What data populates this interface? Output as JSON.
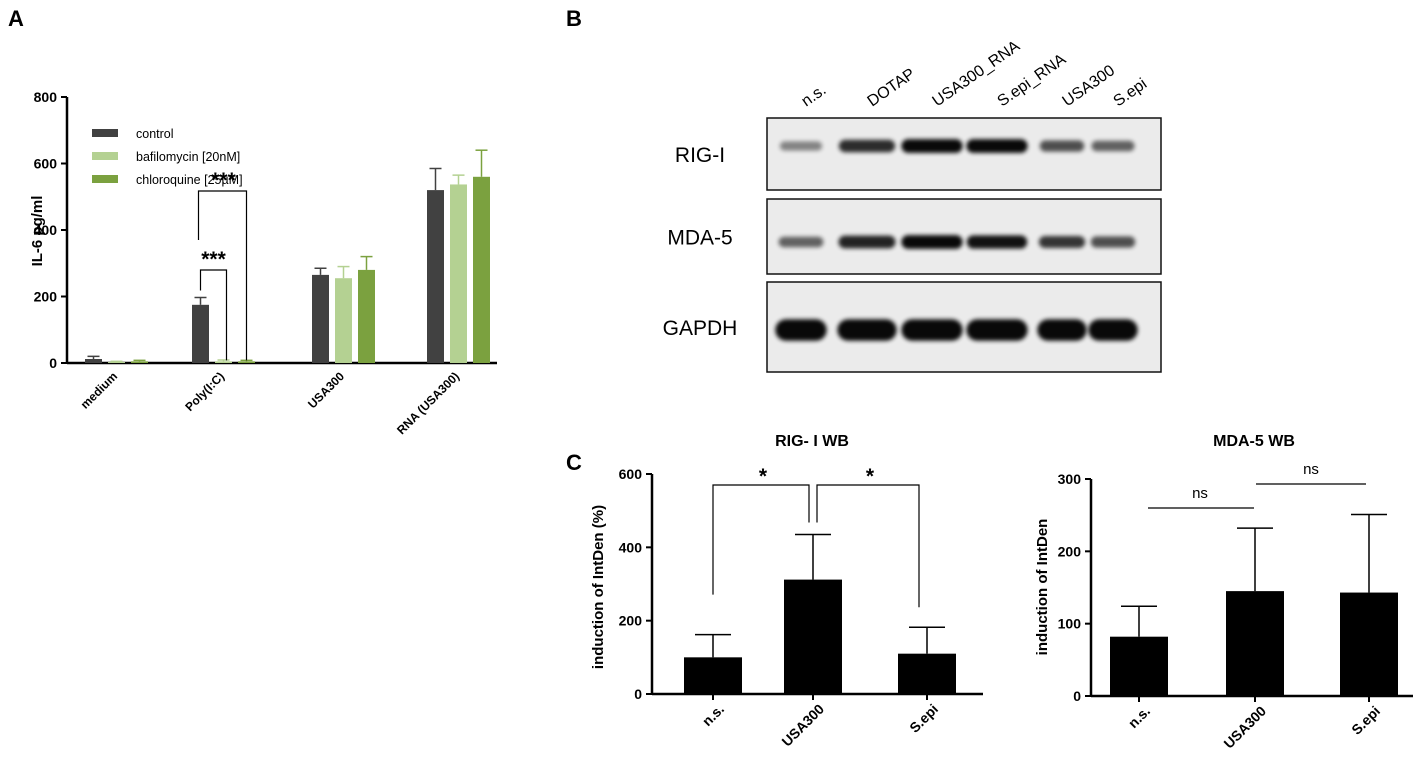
{
  "panels": {
    "a": {
      "letter": "A",
      "chart_data": {
        "type": "bar",
        "title": "",
        "xlabel": "",
        "ylabel": "IL-6 pg/ml",
        "ylim": [
          0,
          800
        ],
        "yticks": [
          0,
          200,
          400,
          600,
          800
        ],
        "categories": [
          "medium",
          "Poly(I:C)",
          "USA300",
          "RNA (USA300)"
        ],
        "series": [
          {
            "name": "control",
            "color": "#414141",
            "values": [
              12,
              175,
              265,
              520
            ],
            "errors": [
              8,
              22,
              20,
              65
            ]
          },
          {
            "name": "bafilomycin [20nM]",
            "color": "#b4d192",
            "values": [
              3,
              5,
              255,
              537
            ],
            "errors": [
              2,
              4,
              35,
              28
            ]
          },
          {
            "name": "chloroquine [25µM]",
            "color": "#7ba13f",
            "values": [
              5,
              5,
              280,
              560
            ],
            "errors": [
              3,
              3,
              40,
              80
            ]
          }
        ],
        "legend_position": "top-left",
        "annotations": [
          {
            "label": "***",
            "from": "Poly(I:C) control",
            "to": "Poly(I:C) bafilomycin [20nM]"
          },
          {
            "label": "***",
            "from": "Poly(I:C) control",
            "to": "Poly(I:C) chloroquine [25µM]"
          }
        ]
      }
    },
    "b": {
      "letter": "B",
      "lanes": [
        "n.s.",
        "DOTAP",
        "USA300_RNA",
        "S.epi_RNA",
        "USA300",
        "S.epi"
      ],
      "proteins": [
        {
          "name": "RIG-I",
          "intensities": [
            0.25,
            0.75,
            0.95,
            0.95,
            0.55,
            0.45
          ]
        },
        {
          "name": "MDA-5",
          "intensities": [
            0.45,
            0.8,
            0.95,
            0.9,
            0.7,
            0.55
          ]
        },
        {
          "name": "GAPDH",
          "intensities": [
            0.95,
            0.95,
            0.95,
            0.95,
            0.95,
            0.95
          ]
        }
      ]
    },
    "c": {
      "letter": "C",
      "charts": [
        {
          "chart_data": {
            "type": "bar",
            "title": "RIG- I WB",
            "xlabel": "",
            "ylabel": "induction of IntDen (%)",
            "ylim": [
              0,
              600
            ],
            "yticks": [
              0,
              200,
              400,
              600
            ],
            "categories": [
              "n.s.",
              "USA300",
              "S.epi"
            ],
            "values": [
              100,
              312,
              110
            ],
            "errors": [
              62,
              123,
              72
            ],
            "color": "#000000",
            "annotations": [
              {
                "label": "*",
                "from": "n.s.",
                "to": "USA300"
              },
              {
                "label": "*",
                "from": "USA300",
                "to": "S.epi"
              }
            ]
          }
        },
        {
          "chart_data": {
            "type": "bar",
            "title": "MDA-5 WB",
            "xlabel": "",
            "ylabel": "induction of IntDen",
            "ylim": [
              0,
              300
            ],
            "yticks": [
              0,
              100,
              200,
              300
            ],
            "categories": [
              "n.s.",
              "USA300",
              "S.epi"
            ],
            "values": [
              82,
              145,
              143
            ],
            "errors": [
              42,
              87,
              108
            ],
            "color": "#000000",
            "annotations": [
              {
                "label": "ns",
                "from": "n.s.",
                "to": "USA300"
              },
              {
                "label": "ns",
                "from": "USA300",
                "to": "S.epi"
              }
            ]
          }
        }
      ]
    }
  }
}
